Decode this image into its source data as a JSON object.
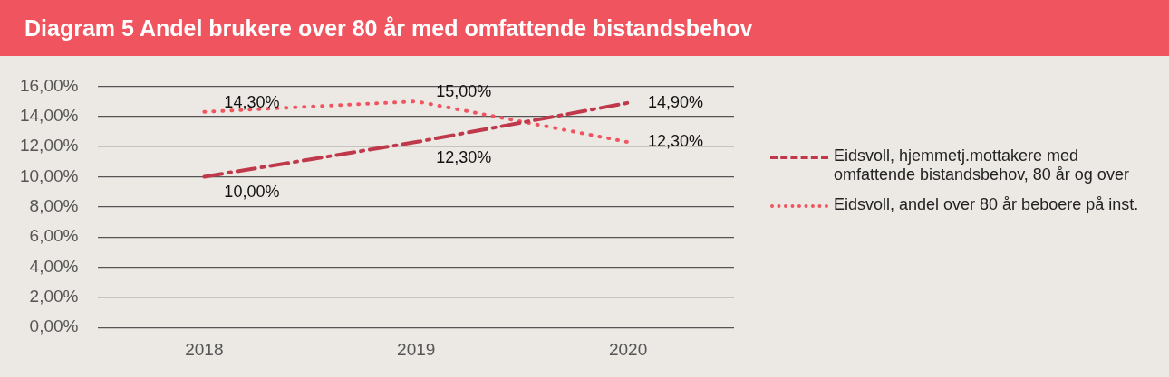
{
  "chart_data": {
    "type": "line",
    "title": "Diagram 5 Andel brukere over 80 år med omfattende bistandsbehov",
    "categories": [
      "2018",
      "2019",
      "2020"
    ],
    "series": [
      {
        "name": "Eidsvoll, hjemmetj.mottakere med omfattende bistandsbehov, 80 år og over",
        "color": "#c0394a",
        "line_style": "dashed",
        "values": [
          10,
          12.3,
          14.9
        ],
        "value_labels": [
          "10,00%",
          "12,30%",
          "14,90%"
        ]
      },
      {
        "name": "Eidsvoll, andel over 80 år beboere på inst.",
        "color": "#f0555f",
        "line_style": "dotted",
        "values": [
          14.3,
          15,
          12.3
        ],
        "value_labels": [
          "14,30%",
          "15,00%",
          "12,30%"
        ]
      }
    ],
    "ylim": [
      0,
      16
    ],
    "yticks": [
      {
        "value": 0,
        "label": "0,00%"
      },
      {
        "value": 2,
        "label": "2,00%"
      },
      {
        "value": 4,
        "label": "4,00%"
      },
      {
        "value": 6,
        "label": "6,00%"
      },
      {
        "value": 8,
        "label": "8,00%"
      },
      {
        "value": 10,
        "label": "10,00%"
      },
      {
        "value": 12,
        "label": "12,00%"
      },
      {
        "value": 14,
        "label": "14,00%"
      },
      {
        "value": 16,
        "label": "16,00%"
      }
    ],
    "grid": "y",
    "legend": "right",
    "marker": "none"
  }
}
